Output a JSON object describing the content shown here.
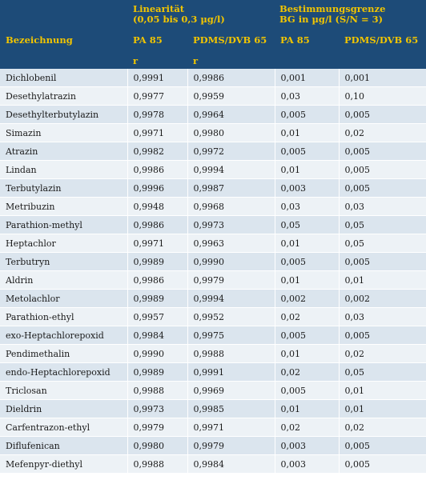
{
  "header": {
    "group1_line1": "Linearität",
    "group1_line2": "(0,05 bis 0,3 µg/l)",
    "group2_line1": "Bestimmungsgrenze",
    "group2_line2": "BG in µg/l (S/N = 3)",
    "col_name": "Bezeichnung",
    "col_pa85_lin": "PA 85",
    "col_pdms_lin": "PDMS/DVB 65",
    "col_pa85_bg": "PA 85",
    "col_pdms_bg": "PDMS/DVB 65",
    "unit_pa85_lin": "r",
    "unit_pdms_lin": "r"
  },
  "colors": {
    "header_bg": "#1d4b78",
    "header_text": "#f2c500",
    "row_odd": "#dbe5ee",
    "row_even": "#edf2f6"
  },
  "rows": [
    [
      "Dichlobenil",
      "0,9991",
      "0,9986",
      "0,001",
      "0,001"
    ],
    [
      "Desethylatrazin",
      "0,9977",
      "0,9959",
      "0,03",
      "0,10"
    ],
    [
      "Desethylterbutylazin",
      "0,9978",
      "0,9964",
      "0,005",
      "0,005"
    ],
    [
      "Simazin",
      "0,9971",
      "0,9980",
      "0,01",
      "0,02"
    ],
    [
      "Atrazin",
      "0,9982",
      "0,9972",
      "0,005",
      "0,005"
    ],
    [
      "Lindan",
      "0,9986",
      "0,9994",
      "0,01",
      "0,005"
    ],
    [
      "Terbutylazin",
      "0,9996",
      "0,9987",
      "0,003",
      "0,005"
    ],
    [
      "Metribuzin",
      "0,9948",
      "0,9968",
      "0,03",
      "0,03"
    ],
    [
      "Parathion-methyl",
      "0,9986",
      "0,9973",
      "0,05",
      "0,05"
    ],
    [
      "Heptachlor",
      "0,9971",
      "0,9963",
      "0,01",
      "0,05"
    ],
    [
      "Terbutryn",
      "0,9989",
      "0,9990",
      "0,005",
      "0,005"
    ],
    [
      "Aldrin",
      "0,9986",
      "0,9979",
      "0,01",
      "0,01"
    ],
    [
      "Metolachlor",
      "0,9989",
      "0,9994",
      "0,002",
      "0,002"
    ],
    [
      "Parathion-ethyl",
      "0,9957",
      "0,9952",
      "0,02",
      "0,03"
    ],
    [
      "exo-Heptachlorepoxid",
      "0,9984",
      "0,9975",
      "0,005",
      "0,005"
    ],
    [
      "Pendimethalin",
      "0,9990",
      "0,9988",
      "0,01",
      "0,02"
    ],
    [
      "endo-Heptachlorepoxid",
      "0,9989",
      "0,9991",
      "0,02",
      "0,05"
    ],
    [
      "Triclosan",
      "0,9988",
      "0,9969",
      "0,005",
      "0,01"
    ],
    [
      "Dieldrin",
      "0,9973",
      "0,9985",
      "0,01",
      "0,01"
    ],
    [
      "Carfentrazon-ethyl",
      "0,9979",
      "0,9971",
      "0,02",
      "0,02"
    ],
    [
      "Diflufenican",
      "0,9980",
      "0,9979",
      "0,003",
      "0,005"
    ],
    [
      "Mefenpyr-diethyl",
      "0,9988",
      "0,9984",
      "0,003",
      "0,005"
    ]
  ]
}
